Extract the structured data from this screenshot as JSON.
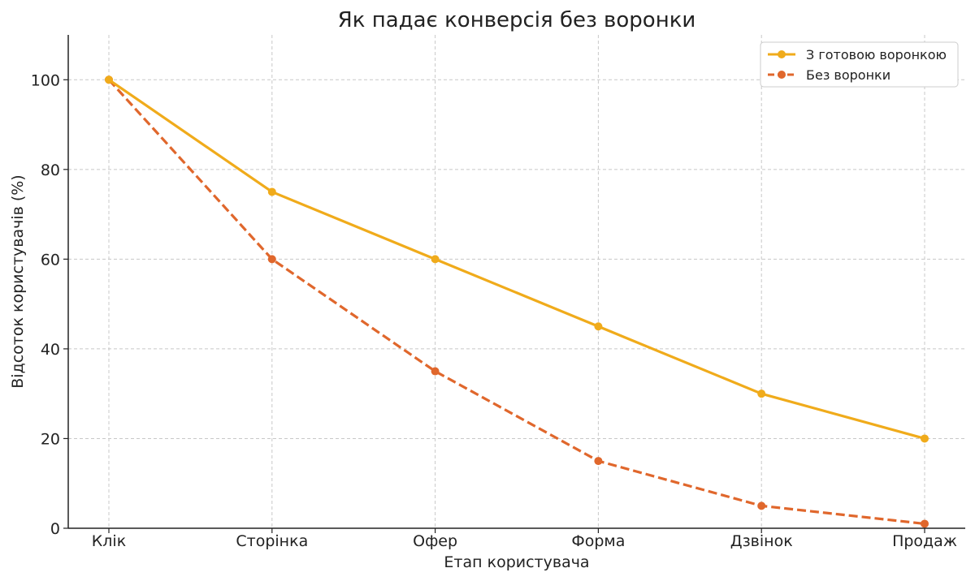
{
  "chart_data": {
    "type": "line",
    "title": "Як падає конверсія без воронки",
    "xlabel": "Етап користувача",
    "ylabel": "Відсоток користувачів (%)",
    "categories": [
      "Клік",
      "Сторінка",
      "Офер",
      "Форма",
      "Дзвінок",
      "Продаж"
    ],
    "ylim": [
      0,
      110
    ],
    "yticks": [
      0,
      20,
      40,
      60,
      80,
      100
    ],
    "grid": true,
    "legend_position": "top-right",
    "series": [
      {
        "name": "З готовою воронкою",
        "values": [
          100,
          75,
          60,
          45,
          30,
          20
        ],
        "color": "#f0ab1b",
        "line_style": "solid"
      },
      {
        "name": "Без воронки",
        "values": [
          100,
          60,
          35,
          15,
          5,
          1
        ],
        "color": "#e0672c",
        "line_style": "dashed"
      }
    ]
  }
}
